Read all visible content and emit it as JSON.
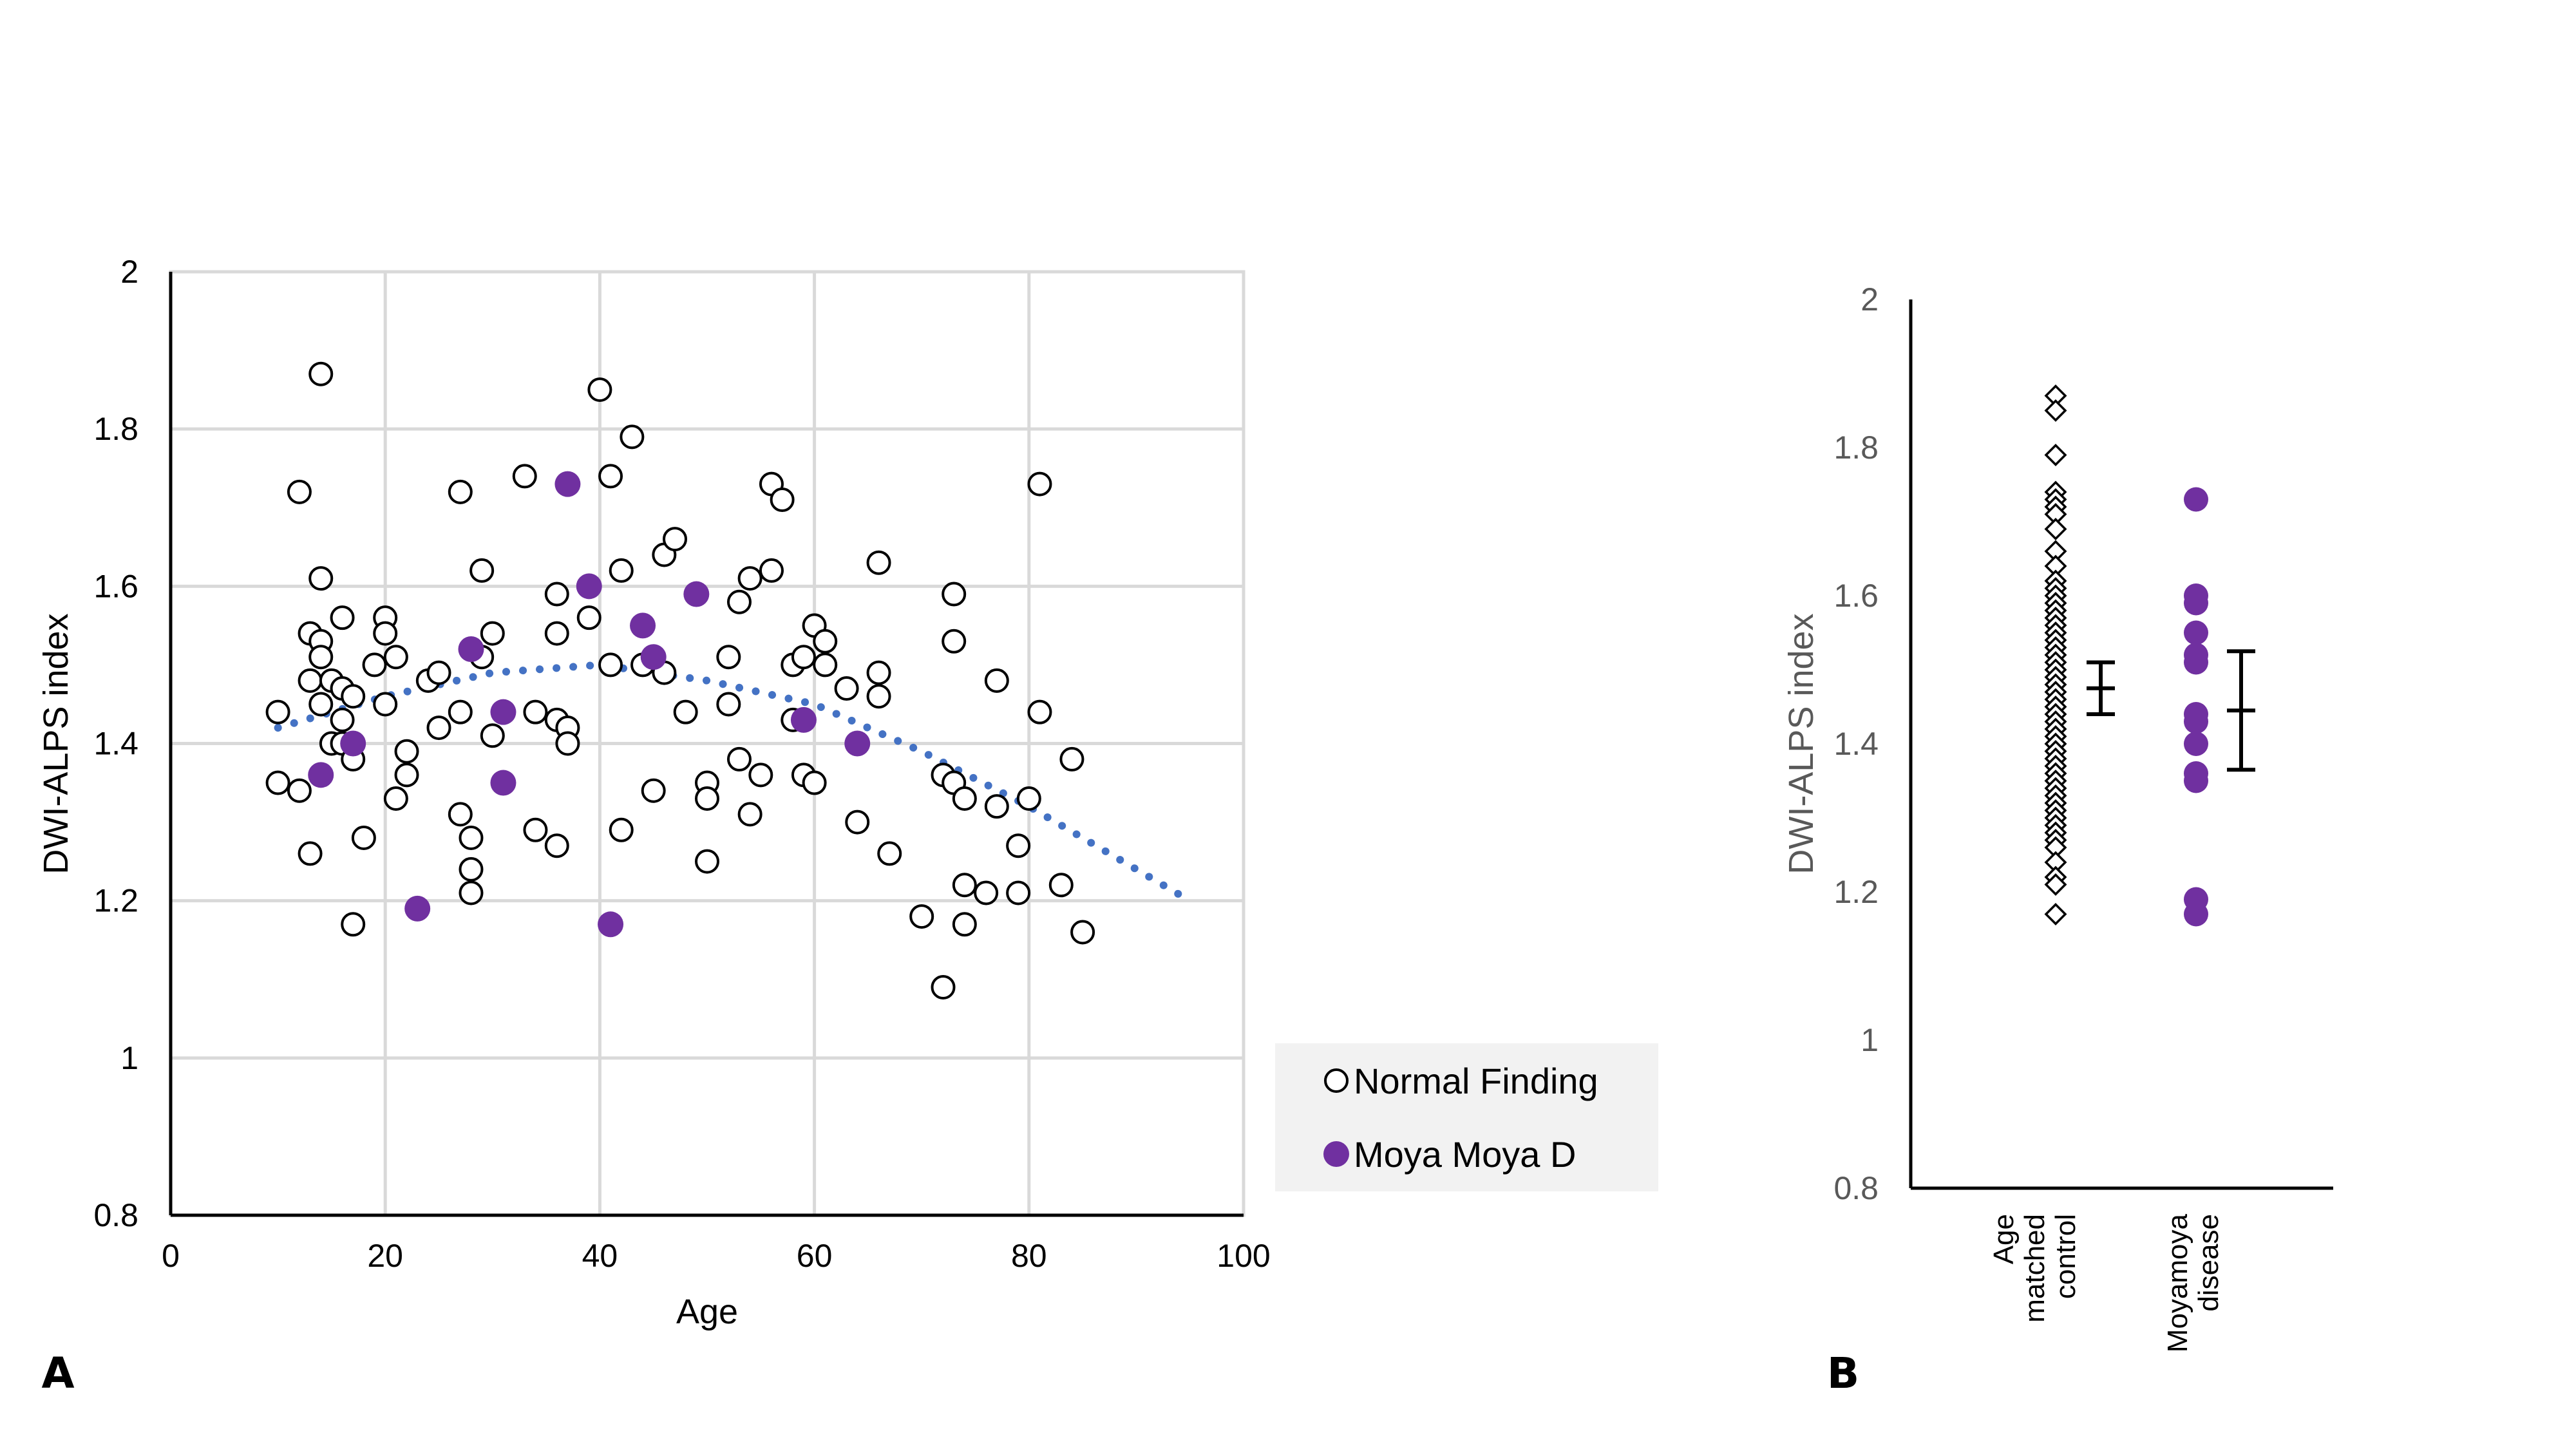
{
  "chart_data": [
    {
      "panel": "A",
      "type": "scatter",
      "xlabel": "Age",
      "ylabel": "DWI-ALPS index",
      "xlim": [
        0,
        100
      ],
      "ylim": [
        0.8,
        2
      ],
      "x_ticks": [
        "0",
        "20",
        "40",
        "60",
        "80",
        "100"
      ],
      "y_ticks": [
        "0.8",
        "1",
        "1.2",
        "1.4",
        "1.6",
        "1.8",
        "2"
      ],
      "grid": true,
      "legend_position": "bottom-right",
      "colors": {
        "normal": "#000000",
        "moyamoya": "#7030a0",
        "trend": "#4472c4"
      },
      "series": [
        {
          "name": "Normal Finding",
          "marker": "open-circle",
          "points": [
            [
              10,
              1.44
            ],
            [
              10,
              1.35
            ],
            [
              12,
              1.72
            ],
            [
              12,
              1.34
            ],
            [
              13,
              1.54
            ],
            [
              13,
              1.48
            ],
            [
              13,
              1.26
            ],
            [
              14,
              1.87
            ],
            [
              14,
              1.61
            ],
            [
              14,
              1.53
            ],
            [
              14,
              1.51
            ],
            [
              14,
              1.45
            ],
            [
              15,
              1.4
            ],
            [
              15,
              1.48
            ],
            [
              16,
              1.56
            ],
            [
              16,
              1.47
            ],
            [
              16,
              1.43
            ],
            [
              16,
              1.4
            ],
            [
              17,
              1.46
            ],
            [
              17,
              1.38
            ],
            [
              17,
              1.17
            ],
            [
              18,
              1.28
            ],
            [
              19,
              1.5
            ],
            [
              20,
              1.56
            ],
            [
              20,
              1.54
            ],
            [
              20,
              1.45
            ],
            [
              21,
              1.51
            ],
            [
              21,
              1.33
            ],
            [
              22,
              1.39
            ],
            [
              22,
              1.36
            ],
            [
              24,
              1.48
            ],
            [
              25,
              1.49
            ],
            [
              25,
              1.42
            ],
            [
              27,
              1.72
            ],
            [
              27,
              1.44
            ],
            [
              27,
              1.31
            ],
            [
              28,
              1.28
            ],
            [
              28,
              1.24
            ],
            [
              28,
              1.21
            ],
            [
              29,
              1.62
            ],
            [
              29,
              1.51
            ],
            [
              30,
              1.54
            ],
            [
              30,
              1.41
            ],
            [
              33,
              1.74
            ],
            [
              34,
              1.44
            ],
            [
              34,
              1.29
            ],
            [
              36,
              1.59
            ],
            [
              36,
              1.54
            ],
            [
              36,
              1.43
            ],
            [
              36,
              1.27
            ],
            [
              37,
              1.42
            ],
            [
              37,
              1.4
            ],
            [
              39,
              1.56
            ],
            [
              40,
              1.85
            ],
            [
              41,
              1.74
            ],
            [
              41,
              1.5
            ],
            [
              42,
              1.62
            ],
            [
              42,
              1.29
            ],
            [
              43,
              1.79
            ],
            [
              44,
              1.5
            ],
            [
              45,
              1.34
            ],
            [
              46,
              1.64
            ],
            [
              46,
              1.49
            ],
            [
              47,
              1.66
            ],
            [
              48,
              1.44
            ],
            [
              50,
              1.35
            ],
            [
              50,
              1.33
            ],
            [
              50,
              1.25
            ],
            [
              52,
              1.51
            ],
            [
              52,
              1.45
            ],
            [
              53,
              1.58
            ],
            [
              53,
              1.38
            ],
            [
              54,
              1.61
            ],
            [
              54,
              1.31
            ],
            [
              55,
              1.36
            ],
            [
              56,
              1.73
            ],
            [
              56,
              1.62
            ],
            [
              57,
              1.71
            ],
            [
              58,
              1.5
            ],
            [
              58,
              1.43
            ],
            [
              59,
              1.51
            ],
            [
              59,
              1.36
            ],
            [
              60,
              1.55
            ],
            [
              60,
              1.35
            ],
            [
              61,
              1.53
            ],
            [
              61,
              1.5
            ],
            [
              63,
              1.47
            ],
            [
              64,
              1.3
            ],
            [
              66,
              1.63
            ],
            [
              66,
              1.49
            ],
            [
              66,
              1.46
            ],
            [
              67,
              1.26
            ],
            [
              70,
              1.18
            ],
            [
              72,
              1.36
            ],
            [
              72,
              1.09
            ],
            [
              73,
              1.59
            ],
            [
              73,
              1.53
            ],
            [
              73,
              1.35
            ],
            [
              74,
              1.33
            ],
            [
              74,
              1.22
            ],
            [
              74,
              1.17
            ],
            [
              76,
              1.21
            ],
            [
              77,
              1.48
            ],
            [
              77,
              1.32
            ],
            [
              79,
              1.27
            ],
            [
              79,
              1.21
            ],
            [
              80,
              1.33
            ],
            [
              81,
              1.73
            ],
            [
              81,
              1.44
            ],
            [
              83,
              1.22
            ],
            [
              84,
              1.38
            ],
            [
              85,
              1.16
            ]
          ]
        },
        {
          "name": "Moya Moya D",
          "marker": "filled-circle",
          "points": [
            [
              14,
              1.36
            ],
            [
              17,
              1.4
            ],
            [
              23,
              1.19
            ],
            [
              28,
              1.52
            ],
            [
              31,
              1.44
            ],
            [
              31,
              1.35
            ],
            [
              37,
              1.73
            ],
            [
              39,
              1.6
            ],
            [
              41,
              1.17
            ],
            [
              44,
              1.55
            ],
            [
              45,
              1.51
            ],
            [
              49,
              1.59
            ],
            [
              59,
              1.43
            ],
            [
              64,
              1.4
            ]
          ]
        },
        {
          "name": "Trend",
          "line": "dotted-polynomial",
          "points": [
            [
              10,
              1.42
            ],
            [
              20,
              1.46
            ],
            [
              30,
              1.49
            ],
            [
              40,
              1.5
            ],
            [
              50,
              1.48
            ],
            [
              60,
              1.45
            ],
            [
              70,
              1.39
            ],
            [
              80,
              1.32
            ],
            [
              90,
              1.24
            ],
            [
              95,
              1.2
            ]
          ]
        }
      ]
    },
    {
      "panel": "B",
      "type": "scatter",
      "ylabel": "DWI-ALPS index",
      "ylim": [
        0.8,
        2
      ],
      "y_ticks": [
        "0.8",
        "1",
        "1.2",
        "1.4",
        "1.6",
        "1.8",
        "2"
      ],
      "categories": [
        {
          "label_lines": [
            "Age",
            "matched",
            "control"
          ]
        },
        {
          "label_lines": [
            "Moyamoya",
            "disease"
          ]
        }
      ],
      "grid": false,
      "series": [
        {
          "name": "Age matched control",
          "marker": "open-diamond",
          "mean": 1.475,
          "error": [
            1.44,
            1.51
          ],
          "values": [
            1.87,
            1.85,
            1.79,
            1.74,
            1.73,
            1.72,
            1.71,
            1.69,
            1.66,
            1.64,
            1.62,
            1.61,
            1.6,
            1.59,
            1.58,
            1.57,
            1.56,
            1.55,
            1.54,
            1.53,
            1.52,
            1.51,
            1.5,
            1.49,
            1.48,
            1.47,
            1.46,
            1.45,
            1.44,
            1.43,
            1.42,
            1.41,
            1.4,
            1.39,
            1.38,
            1.37,
            1.36,
            1.35,
            1.34,
            1.33,
            1.32,
            1.31,
            1.3,
            1.29,
            1.28,
            1.27,
            1.26,
            1.24,
            1.22,
            1.21,
            1.17
          ]
        },
        {
          "name": "Moyamoya disease",
          "marker": "filled-circle",
          "mean": 1.445,
          "error": [
            1.365,
            1.525
          ],
          "values": [
            1.73,
            1.6,
            1.59,
            1.55,
            1.52,
            1.51,
            1.44,
            1.43,
            1.4,
            1.36,
            1.35,
            1.19,
            1.17
          ]
        }
      ]
    }
  ]
}
